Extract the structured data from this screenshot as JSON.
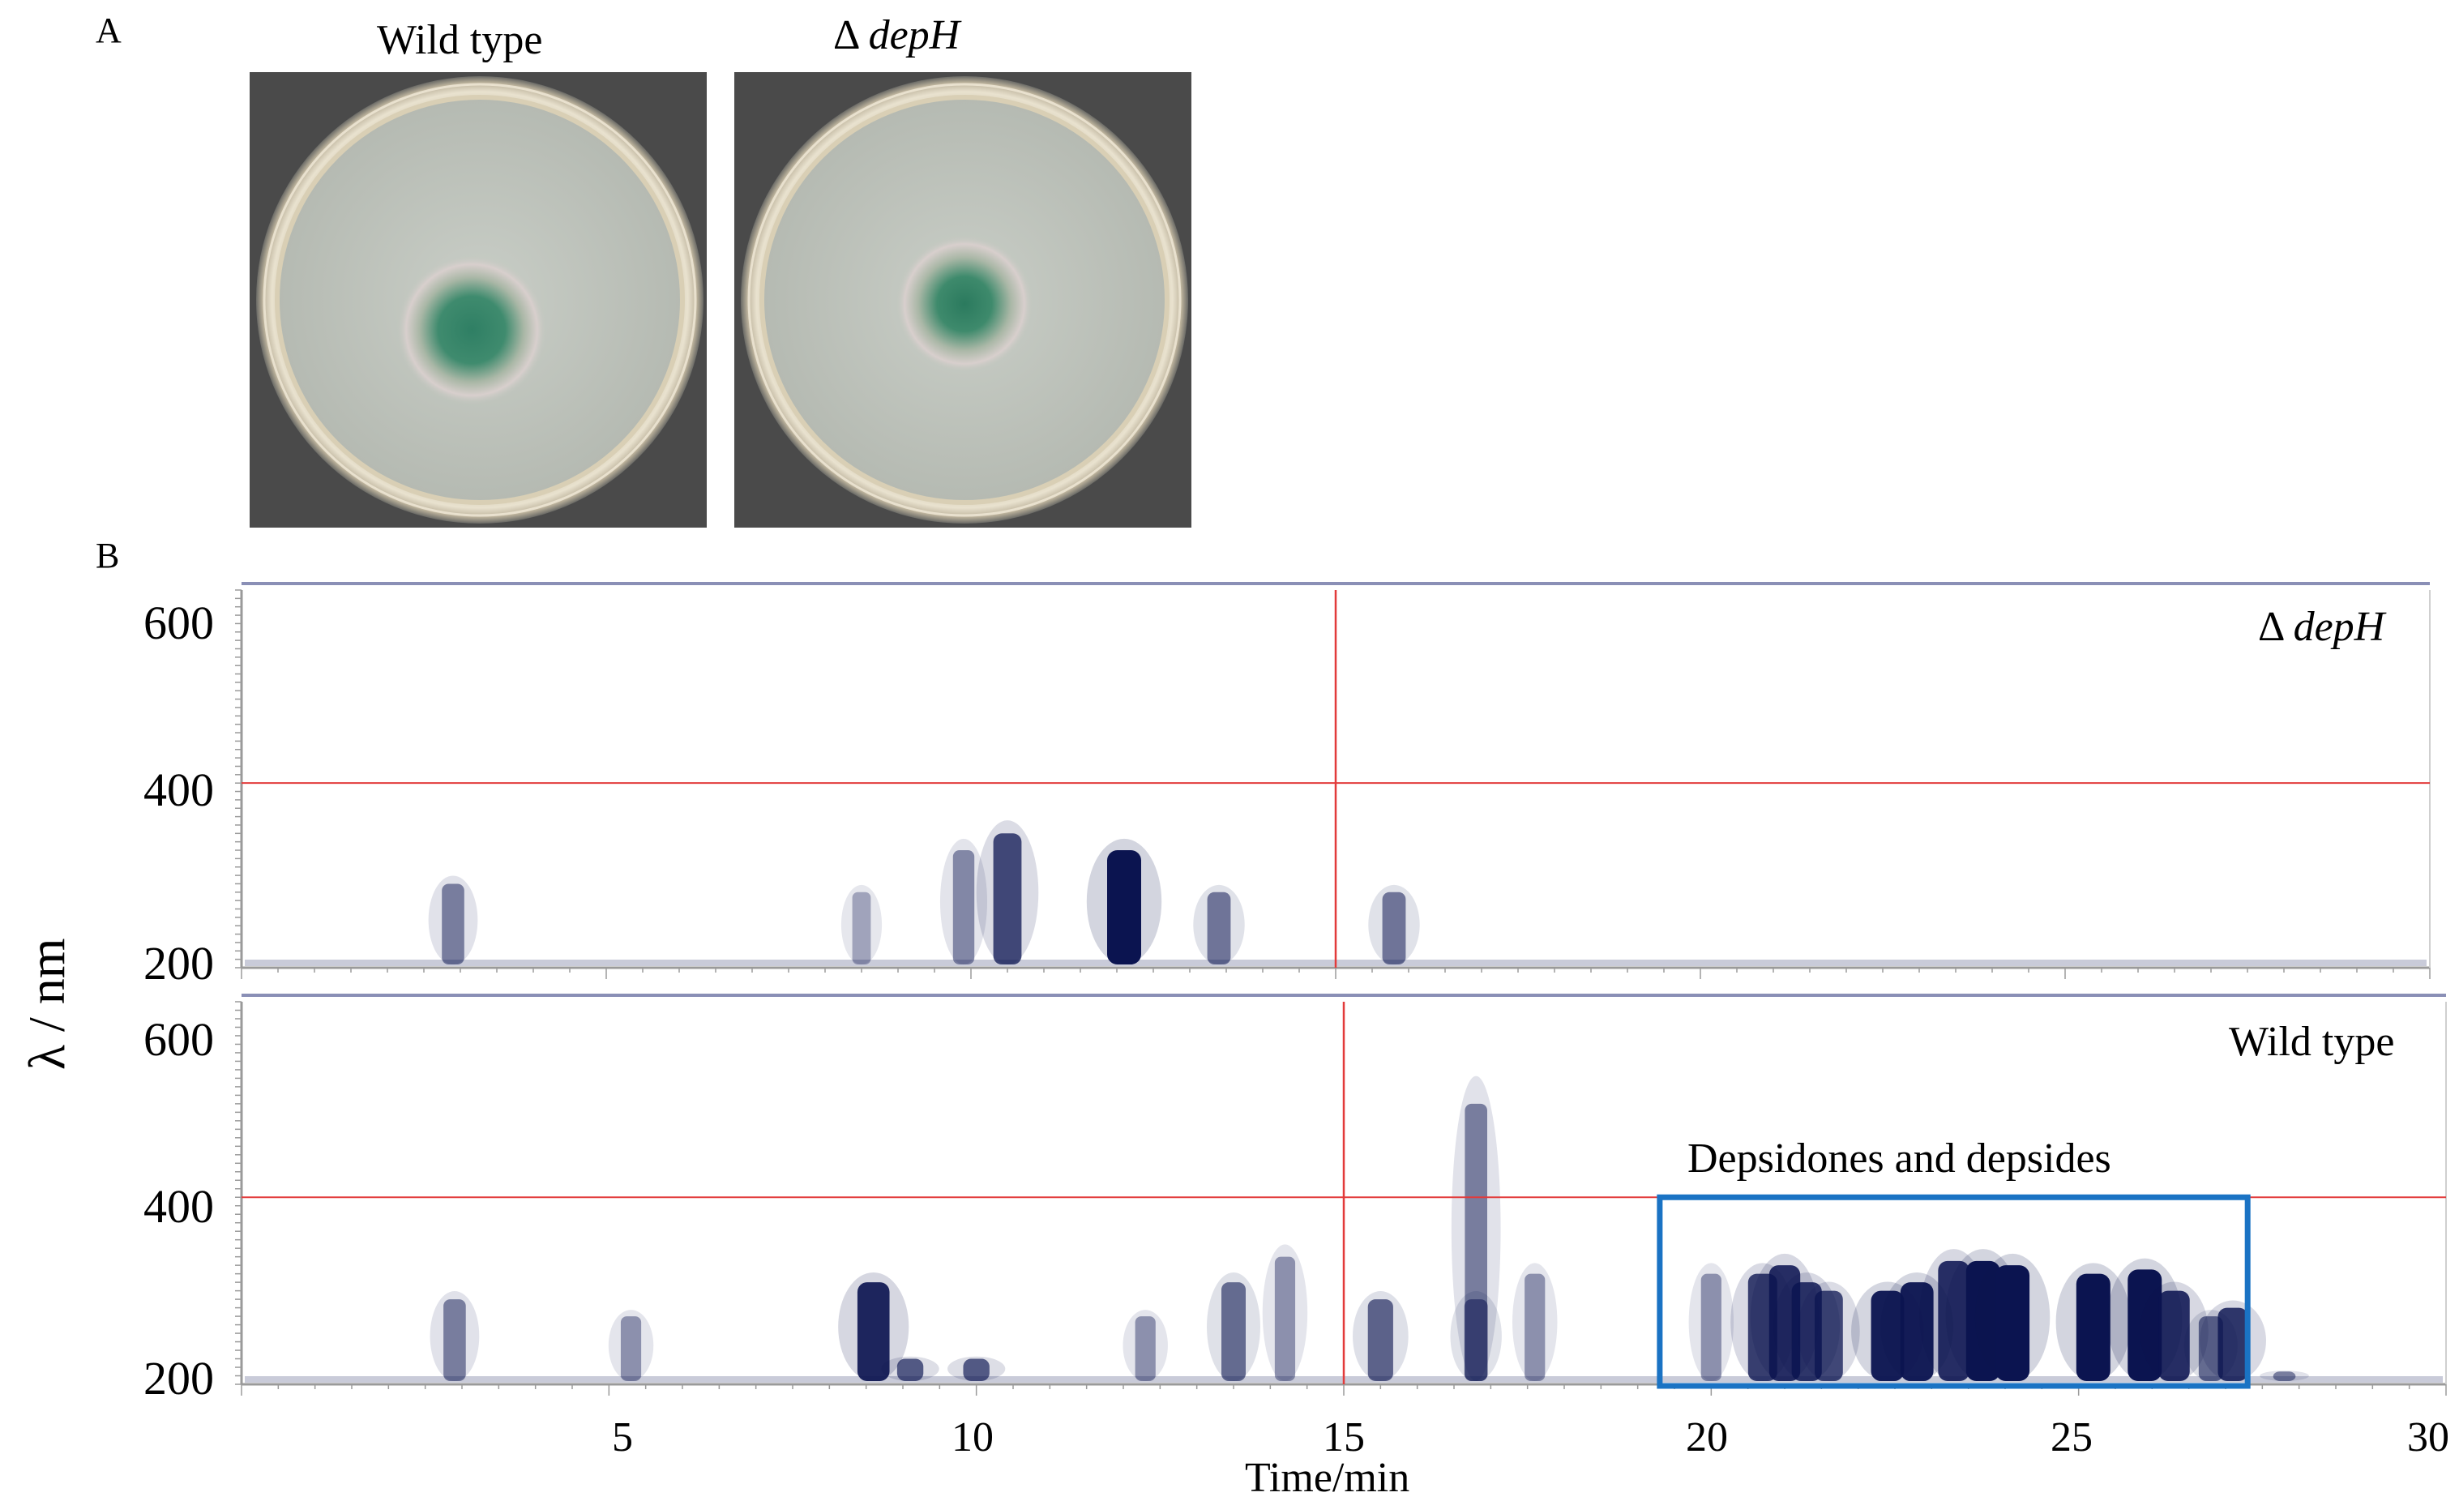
{
  "panel_a": {
    "label": "A",
    "plates": [
      {
        "title_prefix": "",
        "title_italic": "Wild type",
        "italic": false,
        "photo_name": "wild-type-plate-photo"
      },
      {
        "title_prefix": "Δ ",
        "title_italic": "depH",
        "italic": true,
        "photo_name": "depH-plate-photo"
      }
    ]
  },
  "panel_b": {
    "label": "B",
    "y_axis_label": "λ / nm",
    "x_axis_label": "Time/min",
    "x_ticks": [
      "5",
      "10",
      "15",
      "20",
      "25",
      "30"
    ],
    "top": {
      "sample_prefix": "Δ ",
      "sample_italic": "depH",
      "y_ticks": [
        "600",
        "400",
        "200"
      ]
    },
    "bottom": {
      "sample": "Wild type",
      "y_ticks": [
        "600",
        "400",
        "200"
      ],
      "highlight_label": "Depsidones and depsides"
    },
    "colors": {
      "signal": "#0b1450",
      "guide": "#e23b3b",
      "box": "#1a73c4",
      "frame": "#9a9a9a"
    }
  },
  "chart_data": [
    {
      "type": "heatmap",
      "title": "Δ depH",
      "xlabel": "Time/min",
      "ylabel": "λ / nm",
      "xlim": [
        0,
        30
      ],
      "ylim": [
        200,
        650
      ],
      "y_ticks": [
        200,
        400,
        600
      ],
      "guides": {
        "time_min": 15,
        "wavelength_nm": 420
      },
      "peaks": [
        {
          "t": 2.9,
          "wl_top": 300,
          "intensity": 0.4
        },
        {
          "t": 8.5,
          "wl_top": 290,
          "intensity": 0.2
        },
        {
          "t": 9.9,
          "wl_top": 340,
          "intensity": 0.35
        },
        {
          "t": 10.5,
          "wl_top": 360,
          "intensity": 0.7
        },
        {
          "t": 12.1,
          "wl_top": 340,
          "intensity": 1.0
        },
        {
          "t": 13.4,
          "wl_top": 290,
          "intensity": 0.45
        },
        {
          "t": 15.8,
          "wl_top": 290,
          "intensity": 0.45
        }
      ]
    },
    {
      "type": "heatmap",
      "title": "Wild type",
      "xlabel": "Time/min",
      "ylabel": "λ / nm",
      "xlim": [
        0,
        30
      ],
      "ylim": [
        200,
        650
      ],
      "y_ticks": [
        200,
        400,
        600
      ],
      "guides": {
        "time_min": 15,
        "wavelength_nm": 420
      },
      "highlight_range_min": [
        19.3,
        27.3
      ],
      "peaks": [
        {
          "t": 2.9,
          "wl_top": 300,
          "intensity": 0.4
        },
        {
          "t": 5.3,
          "wl_top": 280,
          "intensity": 0.3
        },
        {
          "t": 8.6,
          "wl_top": 320,
          "intensity": 0.9
        },
        {
          "t": 9.1,
          "wl_top": 230,
          "intensity": 0.6
        },
        {
          "t": 10.0,
          "wl_top": 230,
          "intensity": 0.6
        },
        {
          "t": 12.3,
          "wl_top": 280,
          "intensity": 0.3
        },
        {
          "t": 13.5,
          "wl_top": 320,
          "intensity": 0.5
        },
        {
          "t": 14.2,
          "wl_top": 350,
          "intensity": 0.3
        },
        {
          "t": 15.5,
          "wl_top": 300,
          "intensity": 0.55
        },
        {
          "t": 16.8,
          "wl_top": 300,
          "intensity": 0.45
        },
        {
          "t": 16.8,
          "wl_top": 530,
          "intensity": 0.4
        },
        {
          "t": 17.6,
          "wl_top": 330,
          "intensity": 0.3
        },
        {
          "t": 20.0,
          "wl_top": 330,
          "intensity": 0.3
        },
        {
          "t": 20.7,
          "wl_top": 330,
          "intensity": 0.75
        },
        {
          "t": 21.0,
          "wl_top": 340,
          "intensity": 0.85
        },
        {
          "t": 21.3,
          "wl_top": 320,
          "intensity": 0.8
        },
        {
          "t": 21.6,
          "wl_top": 310,
          "intensity": 0.7
        },
        {
          "t": 22.4,
          "wl_top": 310,
          "intensity": 0.95
        },
        {
          "t": 22.8,
          "wl_top": 320,
          "intensity": 0.95
        },
        {
          "t": 23.3,
          "wl_top": 345,
          "intensity": 0.85
        },
        {
          "t": 23.7,
          "wl_top": 345,
          "intensity": 1.0
        },
        {
          "t": 24.1,
          "wl_top": 340,
          "intensity": 1.0
        },
        {
          "t": 25.2,
          "wl_top": 330,
          "intensity": 1.0
        },
        {
          "t": 25.9,
          "wl_top": 335,
          "intensity": 1.0
        },
        {
          "t": 26.3,
          "wl_top": 310,
          "intensity": 0.85
        },
        {
          "t": 26.8,
          "wl_top": 280,
          "intensity": 0.5
        },
        {
          "t": 27.1,
          "wl_top": 290,
          "intensity": 0.8
        },
        {
          "t": 27.8,
          "wl_top": 215,
          "intensity": 0.4
        }
      ]
    }
  ]
}
